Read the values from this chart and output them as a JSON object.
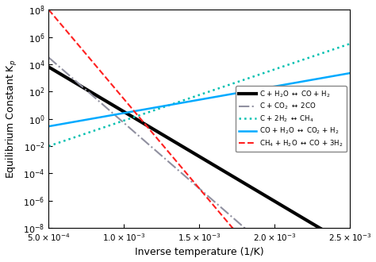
{
  "title": "",
  "xlabel": "Inverse temperature (1/K)",
  "ylabel": "Equilibrium Constant K$_p$",
  "xlim": [
    0.0005,
    0.0025
  ],
  "ylim_log": [
    -8,
    8
  ],
  "lines": [
    {
      "label": "C + H$_2$O $\\leftrightarrow$ CO + H$_2$",
      "color": "#000000",
      "linestyle": "-",
      "linewidth": 3.0,
      "log10_at_xref": 3.8,
      "slope": -6556
    },
    {
      "label": "C + CO$_2$ $\\leftrightarrow$ 2CO",
      "color": "#9090A0",
      "linestyle": "-.",
      "linewidth": 1.5,
      "log10_at_xref": 4.5,
      "slope": -9600
    },
    {
      "label": "C + 2H$_2$ $\\leftrightarrow$ CH$_4$",
      "color": "#00C0B0",
      "linestyle": ":",
      "linewidth": 1.8,
      "log10_at_xref": -2.0,
      "slope": 3750
    },
    {
      "label": "CO + H$_2$O $\\leftrightarrow$ CO$_2$ + H$_2$",
      "color": "#00AAFF",
      "linestyle": "-",
      "linewidth": 1.8,
      "log10_at_xref": -0.55,
      "slope": 1950
    },
    {
      "label": "CH$_4$ + H$_2$O $\\leftrightarrow$ CO + 3H$_2$",
      "color": "#FF2020",
      "linestyle": "--",
      "linewidth": 1.5,
      "log10_at_xref": 8.0,
      "slope": -13100
    }
  ]
}
